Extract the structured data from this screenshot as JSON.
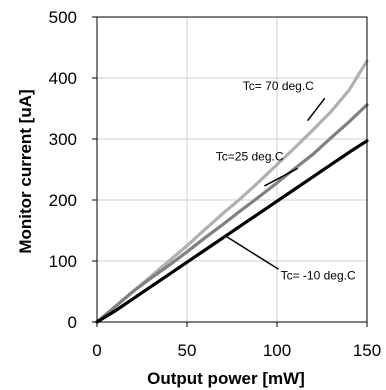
{
  "chart_data": {
    "type": "line",
    "title": "",
    "xlabel": "Output power [mW]",
    "ylabel": "Monitor current [uA]",
    "xlim": [
      0,
      150
    ],
    "ylim": [
      0,
      500
    ],
    "x_ticks": [
      0,
      50,
      100,
      150
    ],
    "y_ticks": [
      0,
      100,
      200,
      300,
      400,
      500
    ],
    "x_tick_labels": [
      "0",
      "50",
      "100",
      "150"
    ],
    "y_tick_labels": [
      "0",
      "100",
      "200",
      "300",
      "400",
      "500"
    ],
    "grid": true,
    "legend": "none",
    "series": [
      {
        "name": "Tc= 70 deg.C",
        "color": "#b0b0b0",
        "x": [
          0,
          10,
          20,
          30,
          40,
          50,
          60,
          70,
          80,
          90,
          100,
          110,
          120,
          130,
          140,
          150
        ],
        "y": [
          0,
          25,
          50,
          75,
          100,
          125,
          152,
          178,
          203,
          230,
          258,
          286,
          315,
          345,
          380,
          428
        ]
      },
      {
        "name": "Tc=25 deg.C",
        "color": "#808080",
        "x": [
          0,
          10,
          20,
          30,
          40,
          50,
          60,
          70,
          80,
          90,
          100,
          110,
          120,
          130,
          140,
          150
        ],
        "y": [
          0,
          25,
          50,
          72,
          93,
          115,
          138,
          160,
          183,
          205,
          228,
          252,
          275,
          302,
          328,
          356
        ]
      },
      {
        "name": "Tc= -10 deg.C",
        "color": "#000000",
        "x": [
          0,
          10,
          20,
          30,
          40,
          50,
          60,
          70,
          80,
          90,
          100,
          110,
          120,
          130,
          140,
          150
        ],
        "y": [
          0,
          18,
          38,
          58,
          78,
          98,
          118,
          138,
          158,
          178,
          198,
          218,
          238,
          258,
          278,
          297
        ]
      }
    ],
    "annotations": [
      {
        "text": "Tc= 70 deg.C",
        "series": 0,
        "label_at": [
          81,
          380
        ],
        "points_to": [
          117,
          330
        ]
      },
      {
        "text": "Tc=25 deg.C",
        "series": 1,
        "label_at": [
          66,
          265
        ],
        "points_to": [
          93,
          223
        ]
      },
      {
        "text": "Tc= -10 deg.C",
        "series": 2,
        "label_at": [
          102,
          70
        ],
        "points_to": [
          72,
          140
        ]
      }
    ]
  }
}
